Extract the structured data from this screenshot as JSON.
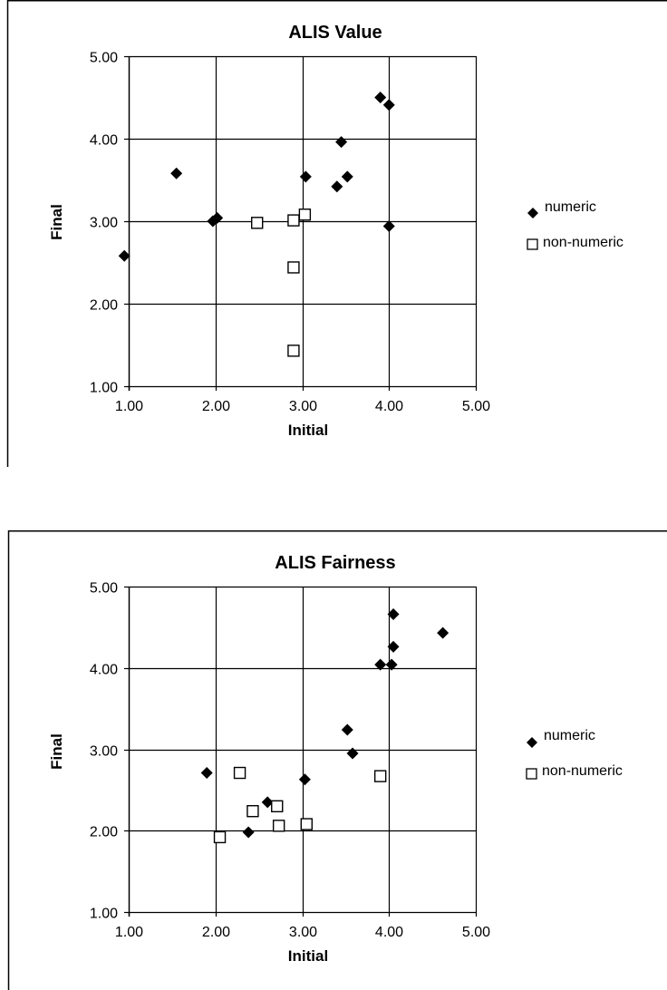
{
  "chart_data": [
    {
      "type": "scatter",
      "title": "ALIS Value",
      "xlabel": "Initial",
      "ylabel": "Final",
      "xlim": [
        1,
        5
      ],
      "ylim": [
        1,
        5
      ],
      "xticks": [
        "1.00",
        "2.00",
        "3.00",
        "4.00",
        "5.00"
      ],
      "yticks": [
        "1.00",
        "2.00",
        "3.00",
        "4.00",
        "5.00"
      ],
      "grid": true,
      "legend_position": "right",
      "series": [
        {
          "name": "numeric",
          "marker": "diamond",
          "color": "#000000",
          "points": [
            {
              "x": 0.95,
              "y": 2.58
            },
            {
              "x": 1.55,
              "y": 3.58
            },
            {
              "x": 1.97,
              "y": 3.0
            },
            {
              "x": 2.02,
              "y": 3.04
            },
            {
              "x": 3.04,
              "y": 3.54
            },
            {
              "x": 3.4,
              "y": 3.42
            },
            {
              "x": 3.45,
              "y": 3.96
            },
            {
              "x": 3.52,
              "y": 3.54
            },
            {
              "x": 3.9,
              "y": 4.5
            },
            {
              "x": 4.0,
              "y": 4.41
            },
            {
              "x": 4.0,
              "y": 2.94
            }
          ]
        },
        {
          "name": "non-numeric",
          "marker": "square",
          "color": "#000000",
          "points": [
            {
              "x": 2.48,
              "y": 2.98
            },
            {
              "x": 2.9,
              "y": 3.01
            },
            {
              "x": 3.03,
              "y": 3.08
            },
            {
              "x": 2.9,
              "y": 2.44
            },
            {
              "x": 2.9,
              "y": 1.43
            }
          ]
        }
      ]
    },
    {
      "type": "scatter",
      "title": "ALIS Fairness",
      "xlabel": "Initial",
      "ylabel": "Final",
      "xlim": [
        1,
        5
      ],
      "ylim": [
        1,
        5
      ],
      "xticks": [
        "1.00",
        "2.00",
        "3.00",
        "4.00",
        "5.00"
      ],
      "yticks": [
        "1.00",
        "2.00",
        "3.00",
        "4.00",
        "5.00"
      ],
      "grid": true,
      "legend_position": "right",
      "series": [
        {
          "name": "numeric",
          "marker": "diamond",
          "color": "#000000",
          "points": [
            {
              "x": 1.9,
              "y": 2.71
            },
            {
              "x": 2.38,
              "y": 1.98
            },
            {
              "x": 2.6,
              "y": 2.35
            },
            {
              "x": 3.03,
              "y": 2.63
            },
            {
              "x": 3.52,
              "y": 3.24
            },
            {
              "x": 3.58,
              "y": 2.95
            },
            {
              "x": 3.9,
              "y": 4.04
            },
            {
              "x": 4.03,
              "y": 4.04
            },
            {
              "x": 4.05,
              "y": 4.26
            },
            {
              "x": 4.05,
              "y": 4.66
            },
            {
              "x": 4.62,
              "y": 4.43
            }
          ]
        },
        {
          "name": "non-numeric",
          "marker": "square",
          "color": "#000000",
          "points": [
            {
              "x": 2.05,
              "y": 1.92
            },
            {
              "x": 2.28,
              "y": 2.71
            },
            {
              "x": 2.43,
              "y": 2.24
            },
            {
              "x": 2.71,
              "y": 2.3
            },
            {
              "x": 2.73,
              "y": 2.06
            },
            {
              "x": 3.05,
              "y": 2.08
            },
            {
              "x": 3.9,
              "y": 2.67
            }
          ]
        }
      ]
    }
  ]
}
